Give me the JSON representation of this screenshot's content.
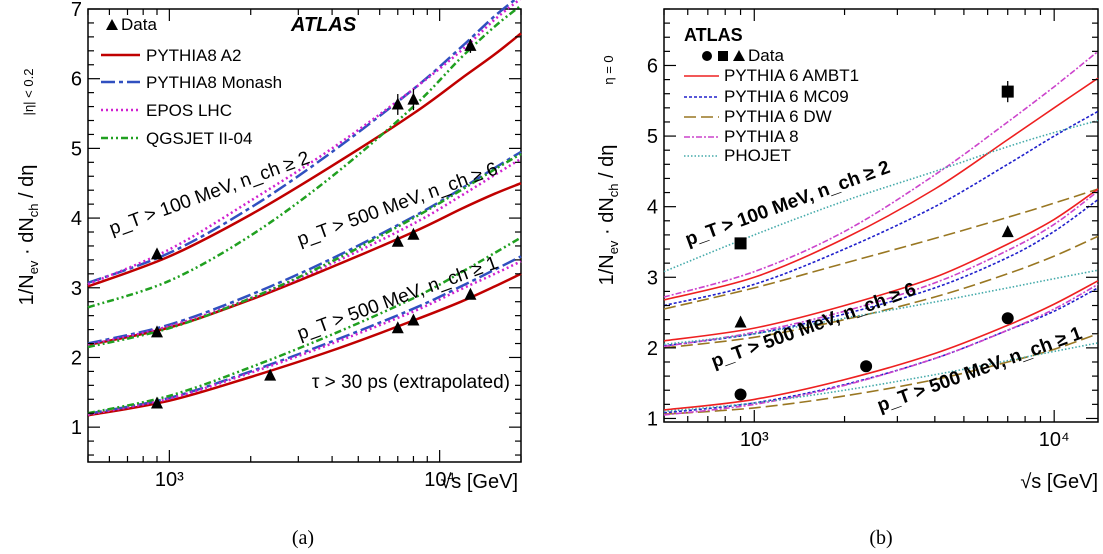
{
  "panels": [
    {
      "id": "a",
      "caption": "(a)",
      "experiment": "ATLAS",
      "xlabel": "√s [GeV]",
      "ylabel": "1/N_ev · dN_ch / dη | |η| < 0.2",
      "ylabel_main": "1/N",
      "ylabel_sub1": "ev",
      "ylabel_mid": " · dN",
      "ylabel_sub2": "ch",
      "ylabel_tail": " / dη",
      "ylabel_range": "|η| < 0.2",
      "x_ticks": [
        "10³",
        "10⁴"
      ],
      "y_ticks": [
        "1",
        "2",
        "3",
        "4",
        "5",
        "6",
        "7"
      ],
      "note": "τ > 30 ps (extrapolated)",
      "legend": [
        "Data",
        "PYTHIA8 A2",
        "PYTHIA8 Monash",
        "EPOS LHC",
        "QGSJET II-04"
      ],
      "labels": [
        "p_T > 100 MeV, n_ch ≥ 2",
        "p_T > 500 MeV, n_ch ≥ 6",
        "p_T > 500 MeV, n_ch ≥ 1"
      ]
    },
    {
      "id": "b",
      "caption": "(b)",
      "experiment": "ATLAS",
      "xlabel": "√s [GeV]",
      "ylabel": "1/N_ev · dN_ch / dη | η = 0",
      "ylabel_main": "1/N",
      "ylabel_sub1": "ev",
      "ylabel_mid": " · dN",
      "ylabel_sub2": "ch",
      "ylabel_tail": " / dη",
      "ylabel_range": "η = 0",
      "x_ticks": [
        "10³",
        "10⁴"
      ],
      "y_ticks": [
        "1",
        "2",
        "3",
        "4",
        "5",
        "6"
      ],
      "legend": [
        "Data",
        "PYTHIA 6 AMBT1",
        "PYTHIA 6 MC09",
        "PYTHIA 6 DW",
        "PYTHIA 8",
        "PHOJET"
      ],
      "labels": [
        "p_T > 100 MeV, n_ch ≥ 2",
        "p_T > 500 MeV, n_ch ≥ 6",
        "p_T > 500 MeV, n_ch ≥ 1"
      ]
    }
  ],
  "chart_data": [
    {
      "type": "line",
      "panel": "a",
      "x_scale": "log",
      "xlim": [
        500,
        20000
      ],
      "ylim": [
        0.5,
        7
      ],
      "grid": false,
      "legend_position": "top-left",
      "colors": {
        "PYTHIA8 A2": "#c00000",
        "PYTHIA8 Monash": "#3050c0",
        "EPOS LHC": "#d020d0",
        "QGSJET II-04": "#20a020",
        "Data": "#000000"
      },
      "data": [
        {
          "selection": "pT>100 MeV, nch>=2",
          "x": [
            900,
            7000,
            8000,
            13000
          ],
          "y": [
            3.48,
            5.63,
            5.7,
            6.47
          ],
          "err": [
            0.04,
            0.15,
            0.15,
            0.1
          ]
        },
        {
          "selection": "pT>500 MeV, nch>=6",
          "x": [
            900,
            7000,
            8000
          ],
          "y": [
            2.36,
            3.66,
            3.76
          ],
          "err": [
            0.03,
            0.05,
            0.05
          ]
        },
        {
          "selection": "pT>500 MeV, nch>=1",
          "x": [
            900,
            2360,
            7000,
            8000,
            13000
          ],
          "y": [
            1.34,
            1.74,
            2.42,
            2.53,
            2.9
          ],
          "err": [
            0.02,
            0.03,
            0.03,
            0.03,
            0.04
          ]
        }
      ],
      "curves_x": [
        500,
        1000,
        2000,
        4000,
        8000,
        12000,
        16000,
        20000
      ],
      "series": [
        {
          "name": "PYTHIA8 A2",
          "group": "pT>100 MeV, nch>=2",
          "values": [
            3.02,
            3.45,
            4.05,
            4.75,
            5.5,
            6.0,
            6.35,
            6.65
          ]
        },
        {
          "name": "PYTHIA8 Monash",
          "group": "pT>100 MeV, nch>=2",
          "values": [
            3.07,
            3.5,
            4.15,
            4.95,
            5.85,
            6.45,
            6.9,
            7.2
          ]
        },
        {
          "name": "EPOS LHC",
          "group": "pT>100 MeV, nch>=2",
          "values": [
            3.05,
            3.55,
            4.25,
            5.0,
            5.85,
            6.4,
            6.85,
            7.15
          ]
        },
        {
          "name": "QGSJET II-04",
          "group": "pT>100 MeV, nch>=2",
          "values": [
            2.72,
            3.1,
            3.75,
            4.6,
            5.6,
            6.3,
            6.75,
            7.05
          ]
        },
        {
          "name": "PYTHIA8 A2",
          "group": "pT>500 MeV, nch>=6",
          "values": [
            2.18,
            2.43,
            2.83,
            3.3,
            3.8,
            4.13,
            4.35,
            4.5
          ]
        },
        {
          "name": "PYTHIA8 Monash",
          "group": "pT>500 MeV, nch>=6",
          "values": [
            2.2,
            2.47,
            2.9,
            3.42,
            4.02,
            4.42,
            4.72,
            4.95
          ]
        },
        {
          "name": "EPOS LHC",
          "group": "pT>500 MeV, nch>=6",
          "values": [
            2.18,
            2.45,
            2.85,
            3.35,
            3.92,
            4.32,
            4.62,
            4.85
          ]
        },
        {
          "name": "QGSJET II-04",
          "group": "pT>500 MeV, nch>=6",
          "values": [
            2.15,
            2.42,
            2.85,
            3.38,
            4.0,
            4.4,
            4.7,
            4.92
          ]
        },
        {
          "name": "PYTHIA8 A2",
          "group": "pT>500 MeV, nch>=1",
          "values": [
            1.17,
            1.38,
            1.72,
            2.1,
            2.53,
            2.8,
            3.02,
            3.2
          ]
        },
        {
          "name": "PYTHIA8 Monash",
          "group": "pT>500 MeV, nch>=1",
          "values": [
            1.19,
            1.42,
            1.8,
            2.23,
            2.7,
            3.02,
            3.26,
            3.45
          ]
        },
        {
          "name": "EPOS LHC",
          "group": "pT>500 MeV, nch>=1",
          "values": [
            1.18,
            1.41,
            1.78,
            2.2,
            2.66,
            2.98,
            3.2,
            3.38
          ]
        },
        {
          "name": "QGSJET II-04",
          "group": "pT>500 MeV, nch>=1",
          "values": [
            1.2,
            1.45,
            1.86,
            2.33,
            2.85,
            3.22,
            3.5,
            3.72
          ]
        }
      ]
    },
    {
      "type": "line",
      "panel": "b",
      "x_scale": "log",
      "xlim": [
        500,
        14000
      ],
      "ylim": [
        0.95,
        6.8
      ],
      "grid": false,
      "legend_position": "top-left",
      "colors": {
        "PYTHIA 6 AMBT1": "#ee2020",
        "PYTHIA 6 MC09": "#2020cc",
        "PYTHIA 6 DW": "#997722",
        "PYTHIA 8": "#cc44cc",
        "PHOJET": "#44aaaa",
        "Data": "#000000"
      },
      "data": [
        {
          "selection": "pT>100 MeV, nch>=2",
          "marker": "square",
          "x": [
            900,
            7000
          ],
          "y": [
            3.48,
            5.63
          ],
          "err": [
            0.07,
            0.15
          ]
        },
        {
          "selection": "pT>500 MeV, nch>=6",
          "marker": "triangle",
          "x": [
            900,
            7000
          ],
          "y": [
            2.36,
            3.64
          ],
          "err": [
            0.04,
            0.06
          ]
        },
        {
          "selection": "pT>500 MeV, nch>=1",
          "marker": "circle",
          "x": [
            900,
            2360,
            7000
          ],
          "y": [
            1.34,
            1.74,
            2.42
          ],
          "err": [
            0.03,
            0.03,
            0.04
          ]
        }
      ],
      "curves_x": [
        500,
        1000,
        2000,
        4000,
        7000,
        10000,
        14000
      ],
      "series": [
        {
          "name": "PYTHIA 6 AMBT1",
          "group": "pT>100 MeV, nch>=2",
          "values": [
            2.68,
            3.0,
            3.55,
            4.25,
            4.95,
            5.4,
            5.82
          ]
        },
        {
          "name": "PYTHIA 6 MC09",
          "group": "pT>100 MeV, nch>=2",
          "values": [
            2.6,
            2.9,
            3.4,
            4.0,
            4.6,
            5.0,
            5.35
          ]
        },
        {
          "name": "PYTHIA 6 DW",
          "group": "pT>100 MeV, nch>=2",
          "values": [
            2.55,
            2.85,
            3.2,
            3.55,
            3.85,
            4.05,
            4.25
          ]
        },
        {
          "name": "PYTHIA 8",
          "group": "pT>100 MeV, nch>=2",
          "values": [
            2.72,
            3.08,
            3.65,
            4.45,
            5.2,
            5.7,
            6.2
          ]
        },
        {
          "name": "PHOJET",
          "group": "pT>100 MeV, nch>=2",
          "values": [
            3.08,
            3.6,
            4.08,
            4.5,
            4.85,
            5.05,
            5.22
          ]
        },
        {
          "name": "PYTHIA 6 AMBT1",
          "group": "pT>500 MeV, nch>=6",
          "values": [
            2.1,
            2.28,
            2.6,
            3.0,
            3.47,
            3.82,
            4.25
          ]
        },
        {
          "name": "PYTHIA 6 MC09",
          "group": "pT>500 MeV, nch>=6",
          "values": [
            2.03,
            2.2,
            2.48,
            2.85,
            3.28,
            3.65,
            4.1
          ]
        },
        {
          "name": "PYTHIA 6 DW",
          "group": "pT>500 MeV, nch>=6",
          "values": [
            2.0,
            2.15,
            2.4,
            2.72,
            3.05,
            3.3,
            3.58
          ]
        },
        {
          "name": "PYTHIA 8",
          "group": "pT>500 MeV, nch>=6",
          "values": [
            2.02,
            2.22,
            2.52,
            2.92,
            3.38,
            3.75,
            4.22
          ]
        },
        {
          "name": "PHOJET",
          "group": "pT>500 MeV, nch>=6",
          "values": [
            2.05,
            2.2,
            2.42,
            2.65,
            2.85,
            2.98,
            3.1
          ]
        },
        {
          "name": "PYTHIA 6 AMBT1",
          "group": "pT>500 MeV, nch>=1",
          "values": [
            1.12,
            1.27,
            1.55,
            1.92,
            2.32,
            2.62,
            2.95
          ]
        },
        {
          "name": "PYTHIA 6 MC09",
          "group": "pT>500 MeV, nch>=1",
          "values": [
            1.08,
            1.22,
            1.48,
            1.85,
            2.25,
            2.52,
            2.85
          ]
        },
        {
          "name": "PYTHIA 6 DW",
          "group": "pT>500 MeV, nch>=1",
          "values": [
            1.06,
            1.15,
            1.32,
            1.55,
            1.8,
            1.98,
            2.2
          ]
        },
        {
          "name": "PYTHIA 8",
          "group": "pT>500 MeV, nch>=1",
          "values": [
            1.05,
            1.2,
            1.47,
            1.85,
            2.25,
            2.55,
            2.9
          ]
        },
        {
          "name": "PHOJET",
          "group": "pT>500 MeV, nch>=1",
          "values": [
            1.1,
            1.22,
            1.4,
            1.62,
            1.82,
            1.95,
            2.07
          ]
        }
      ]
    }
  ]
}
